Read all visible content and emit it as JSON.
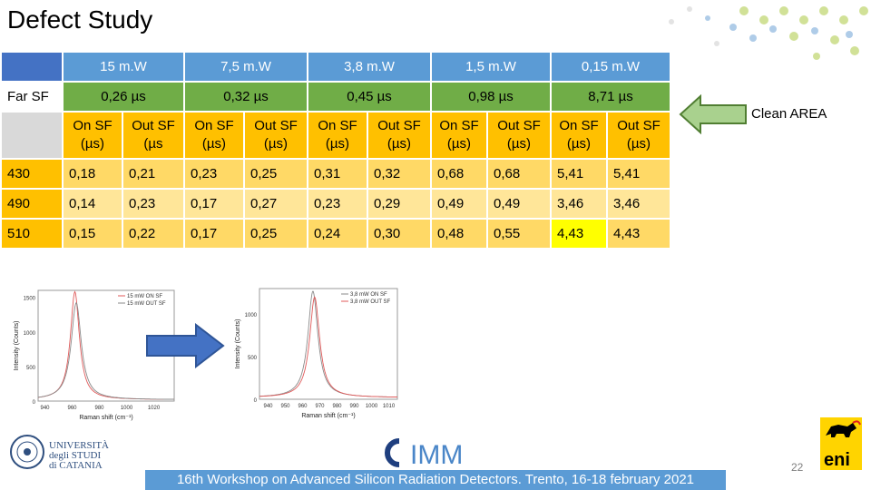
{
  "title": "Defect Study",
  "table": {
    "powers": [
      "15 m.W",
      "7,5 m.W",
      "3,8 m.W",
      "1,5 m.W",
      "0,15 m.W"
    ],
    "row_far_label": "Far SF",
    "times": [
      "0,26 µs",
      "0,32 µs",
      "0,45 µs",
      "0,98 µs",
      "8,71 µs"
    ],
    "sub_on": "On SF (µs)",
    "sub_out": "Out SF (µs)",
    "sub_out_first": "Out SF (µs",
    "rows": [
      {
        "label": "430",
        "values": [
          "0,18",
          "0,21",
          "0,23",
          "0,25",
          "0,31",
          "0,32",
          "0,68",
          "0,68",
          "5,41",
          "5,41"
        ]
      },
      {
        "label": "490",
        "values": [
          "0,14",
          "0,23",
          "0,17",
          "0,27",
          "0,23",
          "0,29",
          "0,49",
          "0,49",
          "3,46",
          "3,46"
        ]
      },
      {
        "label": "510",
        "values": [
          "0,15",
          "0,22",
          "0,17",
          "0,25",
          "0,24",
          "0,30",
          "0,48",
          "0,55",
          "4,43",
          "4,43"
        ]
      }
    ]
  },
  "clean_area": "Clean AREA",
  "chart_data": [
    {
      "type": "line",
      "xlabel": "Raman shift (cm⁻¹)",
      "ylabel": "Intensity (Counts)",
      "xlim": [
        935,
        1035
      ],
      "ylim": [
        0,
        1600
      ],
      "xticks": [
        "940",
        "960",
        "980",
        "1000",
        "1020"
      ],
      "yticks": [
        "0",
        "500",
        "1000",
        "1500"
      ],
      "series": [
        {
          "name": "15 mW ON SF",
          "color": "#e05a5a",
          "center": 962,
          "width": 4,
          "peak": 1560
        },
        {
          "name": "15 mW OUT SF",
          "color": "#8a8a8a",
          "center": 963,
          "width": 4.5,
          "peak": 1400
        }
      ]
    },
    {
      "type": "line",
      "xlabel": "Raman shift (cm⁻¹)",
      "ylabel": "Intensity (Counts)",
      "xlim": [
        935,
        1015
      ],
      "ylim": [
        0,
        1300
      ],
      "xticks": [
        "940",
        "950",
        "960",
        "970",
        "980",
        "990",
        "1000",
        "1010"
      ],
      "yticks": [
        "0",
        "500",
        "1000"
      ],
      "series": [
        {
          "name": "3,8 mW ON SF",
          "color": "#8a8a8a",
          "center": 966,
          "width": 3.5,
          "peak": 1250
        },
        {
          "name": "3,8 mW OUT SF",
          "color": "#e05a5a",
          "center": 967,
          "width": 3.5,
          "peak": 1180
        }
      ]
    }
  ],
  "logos": {
    "unict": [
      "UNIVERSITÀ",
      "degli STUDI",
      "di CATANIA"
    ],
    "imm": "IMM",
    "eni": "eni"
  },
  "footer": "16th Workshop on Advanced Silicon Radiation Detectors. Trento, 16-18 february 2021",
  "page_number": "22"
}
